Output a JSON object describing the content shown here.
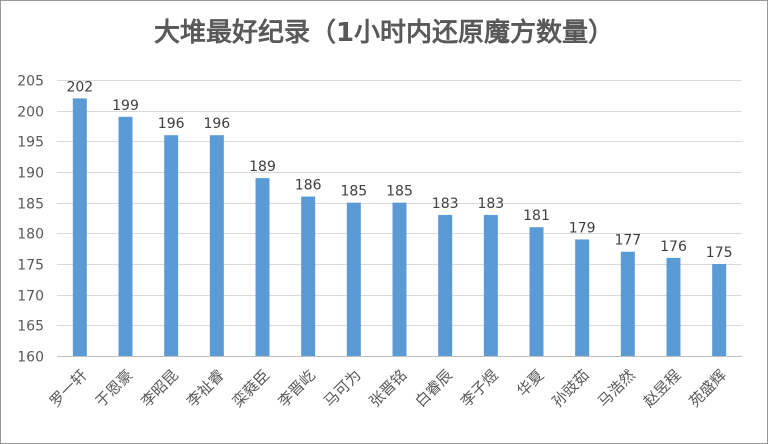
{
  "chart_data": {
    "type": "bar",
    "title": "大堆最好纪录（1小时内还原魔方数量）",
    "categories": [
      "罗一轩",
      "于恩豪",
      "李昭昆",
      "李祉睿",
      "栾蕤臣",
      "李晋屹",
      "马可为",
      "张晋铭",
      "白睿辰",
      "李子煜",
      "华夏",
      "孙豉茹",
      "马浩然",
      "赵昱程",
      "苑盛辉"
    ],
    "values": [
      202,
      199,
      196,
      196,
      189,
      186,
      185,
      185,
      183,
      183,
      181,
      179,
      177,
      176,
      175
    ],
    "ylim": [
      160,
      205
    ],
    "yticks": [
      160,
      165,
      170,
      175,
      180,
      185,
      190,
      195,
      200,
      205
    ],
    "grid": true,
    "bar_color": "#5b9bd5",
    "grid_color": "#d9d9d9"
  }
}
